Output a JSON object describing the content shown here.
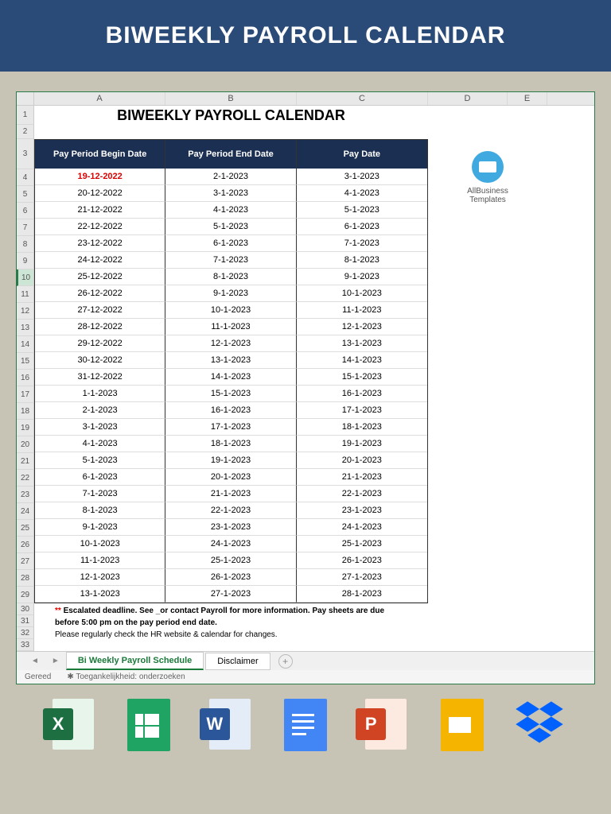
{
  "banner": {
    "title": "BIWEEKLY PAYROLL CALENDAR"
  },
  "colors": {
    "banner_bg": "#2a4a77",
    "header_bg": "#1b2f52",
    "page_bg": "#c7c4b5",
    "red_text": "#d00000",
    "border": "#333333"
  },
  "spreadsheet": {
    "columns": [
      "A",
      "B",
      "C",
      "D",
      "E"
    ],
    "row_numbers_start": 1,
    "row_numbers_end": 33,
    "selected_row": 10,
    "title": "BIWEEKLY PAYROLL CALENDAR",
    "headers": [
      "Pay Period Begin Date",
      "Pay Period End Date",
      "Pay Date"
    ],
    "rows": [
      {
        "begin": "19-12-2022",
        "end": "2-1-2023",
        "pay": "3-1-2023",
        "highlight": true
      },
      {
        "begin": "20-12-2022",
        "end": "3-1-2023",
        "pay": "4-1-2023"
      },
      {
        "begin": "21-12-2022",
        "end": "4-1-2023",
        "pay": "5-1-2023"
      },
      {
        "begin": "22-12-2022",
        "end": "5-1-2023",
        "pay": "6-1-2023"
      },
      {
        "begin": "23-12-2022",
        "end": "6-1-2023",
        "pay": "7-1-2023"
      },
      {
        "begin": "24-12-2022",
        "end": "7-1-2023",
        "pay": "8-1-2023"
      },
      {
        "begin": "25-12-2022",
        "end": "8-1-2023",
        "pay": "9-1-2023"
      },
      {
        "begin": "26-12-2022",
        "end": "9-1-2023",
        "pay": "10-1-2023"
      },
      {
        "begin": "27-12-2022",
        "end": "10-1-2023",
        "pay": "11-1-2023"
      },
      {
        "begin": "28-12-2022",
        "end": "11-1-2023",
        "pay": "12-1-2023"
      },
      {
        "begin": "29-12-2022",
        "end": "12-1-2023",
        "pay": "13-1-2023"
      },
      {
        "begin": "30-12-2022",
        "end": "13-1-2023",
        "pay": "14-1-2023"
      },
      {
        "begin": "31-12-2022",
        "end": "14-1-2023",
        "pay": "15-1-2023"
      },
      {
        "begin": "1-1-2023",
        "end": "15-1-2023",
        "pay": "16-1-2023"
      },
      {
        "begin": "2-1-2023",
        "end": "16-1-2023",
        "pay": "17-1-2023"
      },
      {
        "begin": "3-1-2023",
        "end": "17-1-2023",
        "pay": "18-1-2023"
      },
      {
        "begin": "4-1-2023",
        "end": "18-1-2023",
        "pay": "19-1-2023"
      },
      {
        "begin": "5-1-2023",
        "end": "19-1-2023",
        "pay": "20-1-2023"
      },
      {
        "begin": "6-1-2023",
        "end": "20-1-2023",
        "pay": "21-1-2023"
      },
      {
        "begin": "7-1-2023",
        "end": "21-1-2023",
        "pay": "22-1-2023"
      },
      {
        "begin": "8-1-2023",
        "end": "22-1-2023",
        "pay": "23-1-2023"
      },
      {
        "begin": "9-1-2023",
        "end": "23-1-2023",
        "pay": "24-1-2023"
      },
      {
        "begin": "10-1-2023",
        "end": "24-1-2023",
        "pay": "25-1-2023"
      },
      {
        "begin": "11-1-2023",
        "end": "25-1-2023",
        "pay": "26-1-2023"
      },
      {
        "begin": "12-1-2023",
        "end": "26-1-2023",
        "pay": "27-1-2023"
      },
      {
        "begin": "13-1-2023",
        "end": "27-1-2023",
        "pay": "28-1-2023"
      }
    ],
    "side": {
      "brand1": "AllBusiness",
      "brand2": "Templates"
    },
    "footnote1_stars": "**",
    "footnote1": " Escalated deadline. See _or contact Payroll for more information. Pay sheets are due",
    "footnote2": "before 5:00 pm on the pay period end date.",
    "footnote3": "Please regularly check the HR website & calendar for changes.",
    "tabs": {
      "active": "Bi Weekly Payroll Schedule",
      "other": "Disclaimer",
      "add": "+"
    },
    "status": {
      "ready": "Gereed",
      "access": "Toegankelijkheid: onderzoeken"
    }
  },
  "icons": {
    "excel": "X",
    "word": "W",
    "ppt": "P"
  }
}
